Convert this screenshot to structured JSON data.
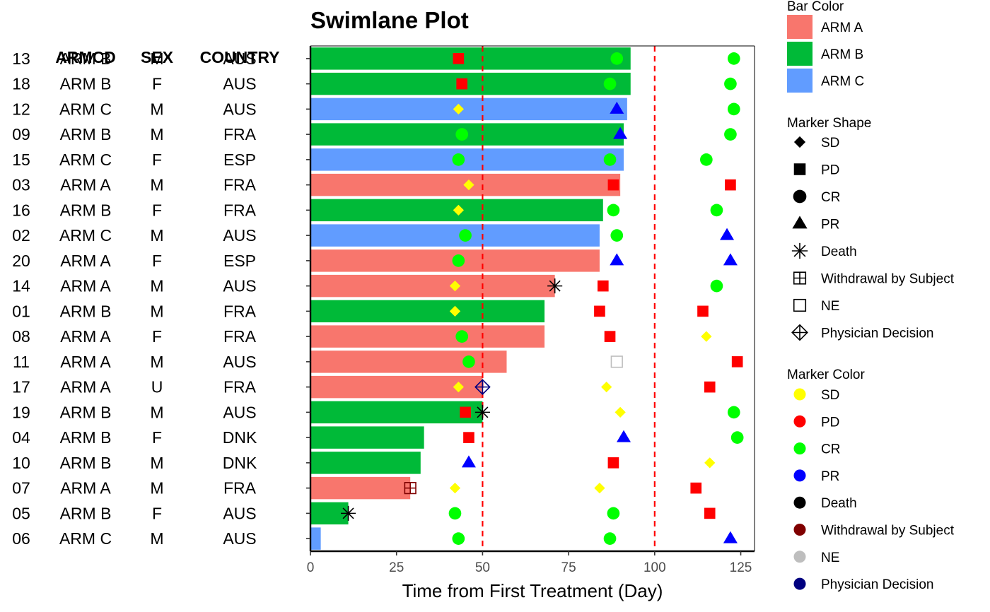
{
  "chart_data": {
    "type": "swimlane",
    "title": "Swimlane Plot",
    "xlabel": "Time from First Treatment (Day)",
    "xlim": [
      0,
      129
    ],
    "xticks": [
      0,
      25,
      50,
      75,
      100,
      125
    ],
    "reference_lines": [
      50,
      100
    ],
    "grid": false,
    "table_headers": [
      "ARMCD",
      "SEX",
      "COUNTRY"
    ],
    "subjects": [
      {
        "id": "13",
        "armcd": "ARM B",
        "sex": "M",
        "country": "AUS",
        "bar_end": 93
      },
      {
        "id": "18",
        "armcd": "ARM B",
        "sex": "F",
        "country": "AUS",
        "bar_end": 93
      },
      {
        "id": "12",
        "armcd": "ARM C",
        "sex": "M",
        "country": "AUS",
        "bar_end": 92
      },
      {
        "id": "09",
        "armcd": "ARM B",
        "sex": "M",
        "country": "FRA",
        "bar_end": 91
      },
      {
        "id": "15",
        "armcd": "ARM C",
        "sex": "F",
        "country": "ESP",
        "bar_end": 91
      },
      {
        "id": "03",
        "armcd": "ARM A",
        "sex": "M",
        "country": "FRA",
        "bar_end": 90
      },
      {
        "id": "16",
        "armcd": "ARM B",
        "sex": "F",
        "country": "FRA",
        "bar_end": 85
      },
      {
        "id": "02",
        "armcd": "ARM C",
        "sex": "M",
        "country": "AUS",
        "bar_end": 84
      },
      {
        "id": "20",
        "armcd": "ARM A",
        "sex": "F",
        "country": "ESP",
        "bar_end": 84
      },
      {
        "id": "14",
        "armcd": "ARM A",
        "sex": "M",
        "country": "AUS",
        "bar_end": 71
      },
      {
        "id": "01",
        "armcd": "ARM B",
        "sex": "M",
        "country": "FRA",
        "bar_end": 68
      },
      {
        "id": "08",
        "armcd": "ARM A",
        "sex": "F",
        "country": "FRA",
        "bar_end": 68
      },
      {
        "id": "11",
        "armcd": "ARM A",
        "sex": "M",
        "country": "AUS",
        "bar_end": 57
      },
      {
        "id": "17",
        "armcd": "ARM A",
        "sex": "U",
        "country": "FRA",
        "bar_end": 50
      },
      {
        "id": "19",
        "armcd": "ARM B",
        "sex": "M",
        "country": "AUS",
        "bar_end": 50
      },
      {
        "id": "04",
        "armcd": "ARM B",
        "sex": "F",
        "country": "DNK",
        "bar_end": 33
      },
      {
        "id": "10",
        "armcd": "ARM B",
        "sex": "M",
        "country": "DNK",
        "bar_end": 32
      },
      {
        "id": "07",
        "armcd": "ARM A",
        "sex": "M",
        "country": "FRA",
        "bar_end": 29
      },
      {
        "id": "05",
        "armcd": "ARM B",
        "sex": "F",
        "country": "AUS",
        "bar_end": 11
      },
      {
        "id": "06",
        "armcd": "ARM C",
        "sex": "M",
        "country": "AUS",
        "bar_end": 3
      }
    ],
    "markers": [
      {
        "subject": "13",
        "day": 43,
        "event": "PD"
      },
      {
        "subject": "13",
        "day": 89,
        "event": "CR"
      },
      {
        "subject": "13",
        "day": 123,
        "event": "CR"
      },
      {
        "subject": "18",
        "day": 44,
        "event": "PD"
      },
      {
        "subject": "18",
        "day": 87,
        "event": "CR"
      },
      {
        "subject": "18",
        "day": 122,
        "event": "CR"
      },
      {
        "subject": "12",
        "day": 43,
        "event": "SD"
      },
      {
        "subject": "12",
        "day": 89,
        "event": "PR"
      },
      {
        "subject": "12",
        "day": 123,
        "event": "CR"
      },
      {
        "subject": "09",
        "day": 44,
        "event": "CR"
      },
      {
        "subject": "09",
        "day": 90,
        "event": "PR"
      },
      {
        "subject": "09",
        "day": 122,
        "event": "CR"
      },
      {
        "subject": "15",
        "day": 43,
        "event": "CR"
      },
      {
        "subject": "15",
        "day": 87,
        "event": "CR"
      },
      {
        "subject": "15",
        "day": 115,
        "event": "CR"
      },
      {
        "subject": "03",
        "day": 46,
        "event": "SD"
      },
      {
        "subject": "03",
        "day": 88,
        "event": "PD"
      },
      {
        "subject": "03",
        "day": 122,
        "event": "PD"
      },
      {
        "subject": "16",
        "day": 43,
        "event": "SD"
      },
      {
        "subject": "16",
        "day": 88,
        "event": "CR"
      },
      {
        "subject": "16",
        "day": 118,
        "event": "CR"
      },
      {
        "subject": "02",
        "day": 45,
        "event": "CR"
      },
      {
        "subject": "02",
        "day": 89,
        "event": "CR"
      },
      {
        "subject": "02",
        "day": 121,
        "event": "PR"
      },
      {
        "subject": "20",
        "day": 43,
        "event": "CR"
      },
      {
        "subject": "20",
        "day": 89,
        "event": "PR"
      },
      {
        "subject": "20",
        "day": 122,
        "event": "PR"
      },
      {
        "subject": "14",
        "day": 42,
        "event": "SD"
      },
      {
        "subject": "14",
        "day": 71,
        "event": "Death"
      },
      {
        "subject": "14",
        "day": 85,
        "event": "PD"
      },
      {
        "subject": "14",
        "day": 118,
        "event": "CR"
      },
      {
        "subject": "01",
        "day": 42,
        "event": "SD"
      },
      {
        "subject": "01",
        "day": 84,
        "event": "PD"
      },
      {
        "subject": "01",
        "day": 114,
        "event": "PD"
      },
      {
        "subject": "08",
        "day": 44,
        "event": "CR"
      },
      {
        "subject": "08",
        "day": 87,
        "event": "PD"
      },
      {
        "subject": "08",
        "day": 115,
        "event": "SD"
      },
      {
        "subject": "11",
        "day": 46,
        "event": "CR"
      },
      {
        "subject": "11",
        "day": 89,
        "event": "NE"
      },
      {
        "subject": "11",
        "day": 124,
        "event": "PD"
      },
      {
        "subject": "17",
        "day": 43,
        "event": "SD"
      },
      {
        "subject": "17",
        "day": 50,
        "event": "Physician Decision"
      },
      {
        "subject": "17",
        "day": 86,
        "event": "SD"
      },
      {
        "subject": "17",
        "day": 116,
        "event": "PD"
      },
      {
        "subject": "19",
        "day": 45,
        "event": "PD"
      },
      {
        "subject": "19",
        "day": 50,
        "event": "Death"
      },
      {
        "subject": "19",
        "day": 90,
        "event": "SD"
      },
      {
        "subject": "19",
        "day": 123,
        "event": "CR"
      },
      {
        "subject": "04",
        "day": 46,
        "event": "PD"
      },
      {
        "subject": "04",
        "day": 91,
        "event": "PR"
      },
      {
        "subject": "04",
        "day": 124,
        "event": "CR"
      },
      {
        "subject": "10",
        "day": 46,
        "event": "PR"
      },
      {
        "subject": "10",
        "day": 88,
        "event": "PD"
      },
      {
        "subject": "10",
        "day": 116,
        "event": "SD"
      },
      {
        "subject": "07",
        "day": 29,
        "event": "Withdrawal by Subject"
      },
      {
        "subject": "07",
        "day": 42,
        "event": "SD"
      },
      {
        "subject": "07",
        "day": 84,
        "event": "SD"
      },
      {
        "subject": "07",
        "day": 112,
        "event": "PD"
      },
      {
        "subject": "05",
        "day": 11,
        "event": "Death"
      },
      {
        "subject": "05",
        "day": 42,
        "event": "CR"
      },
      {
        "subject": "05",
        "day": 88,
        "event": "CR"
      },
      {
        "subject": "05",
        "day": 116,
        "event": "PD"
      },
      {
        "subject": "06",
        "day": 43,
        "event": "CR"
      },
      {
        "subject": "06",
        "day": 87,
        "event": "CR"
      },
      {
        "subject": "06",
        "day": 122,
        "event": "PR"
      }
    ],
    "legend": {
      "placement": "right",
      "bar_color": {
        "title": "Bar Color",
        "items": [
          {
            "label": "ARM A",
            "color": "#F8766D"
          },
          {
            "label": "ARM B",
            "color": "#00BA38"
          },
          {
            "label": "ARM C",
            "color": "#619CFF"
          }
        ]
      },
      "marker_shape": {
        "title": "Marker Shape",
        "items": [
          {
            "label": "SD",
            "shape": "diamond-filled"
          },
          {
            "label": "PD",
            "shape": "square-filled"
          },
          {
            "label": "CR",
            "shape": "circle-filled"
          },
          {
            "label": "PR",
            "shape": "triangle-filled"
          },
          {
            "label": "Death",
            "shape": "asterisk"
          },
          {
            "label": "Withdrawal by Subject",
            "shape": "square-plus"
          },
          {
            "label": "NE",
            "shape": "square-open"
          },
          {
            "label": "Physician Decision",
            "shape": "diamond-plus"
          }
        ]
      },
      "marker_color": {
        "title": "Marker Color",
        "items": [
          {
            "label": "SD",
            "color": "#FFFF00"
          },
          {
            "label": "PD",
            "color": "#FF0000"
          },
          {
            "label": "CR",
            "color": "#00FF00"
          },
          {
            "label": "PR",
            "color": "#0000FF"
          },
          {
            "label": "Death",
            "color": "#000000"
          },
          {
            "label": "Withdrawal by Subject",
            "color": "#800000"
          },
          {
            "label": "NE",
            "color": "#BEBEBE"
          },
          {
            "label": "Physician Decision",
            "color": "#000080"
          }
        ]
      }
    },
    "arm_colors": {
      "ARM A": "#F8766D",
      "ARM B": "#00BA38",
      "ARM C": "#619CFF"
    },
    "reference_line_color": "#FF0000"
  }
}
